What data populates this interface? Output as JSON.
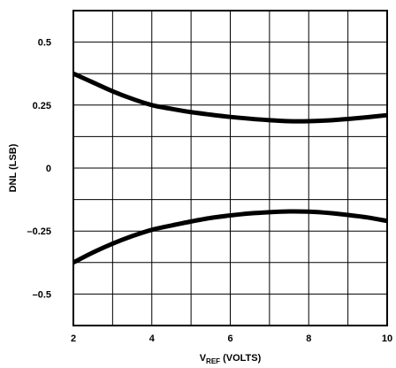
{
  "chart_data": {
    "type": "line",
    "xlabel": "V",
    "xlabel_subscript": "REF",
    "xlabel_suffix": " (VOLTS)",
    "ylabel": "DNL (LSB)",
    "xlim": [
      2,
      10
    ],
    "ylim": [
      -0.625,
      0.625
    ],
    "x_ticks": [
      2,
      4,
      6,
      8,
      10
    ],
    "x_tick_labels": [
      "2",
      "4",
      "6",
      "8",
      "10"
    ],
    "y_ticks": [
      0.5,
      0.25,
      0,
      -0.25,
      -0.5
    ],
    "y_tick_labels": [
      "0.5",
      "0.25",
      "0",
      "–0.25",
      "–0.5"
    ],
    "grid": true,
    "grid_x_step": 1,
    "grid_y_step": 0.125,
    "line_color": "#000000",
    "series": [
      {
        "x": [
          2,
          2.5,
          3,
          3.5,
          4,
          4.5,
          5,
          5.5,
          6,
          6.5,
          7,
          7.5,
          8,
          8.5,
          9,
          9.5,
          10
        ],
        "values": [
          0.375,
          0.34,
          0.305,
          0.275,
          0.25,
          0.235,
          0.222,
          0.212,
          0.203,
          0.196,
          0.19,
          0.186,
          0.186,
          0.189,
          0.195,
          0.202,
          0.21
        ]
      },
      {
        "x": [
          2,
          2.5,
          3,
          3.5,
          4,
          4.5,
          5,
          5.5,
          6,
          6.5,
          7,
          7.5,
          8,
          8.5,
          9,
          9.5,
          10
        ],
        "values": [
          -0.375,
          -0.335,
          -0.3,
          -0.27,
          -0.245,
          -0.228,
          -0.212,
          -0.198,
          -0.188,
          -0.18,
          -0.175,
          -0.172,
          -0.173,
          -0.178,
          -0.186,
          -0.196,
          -0.21
        ]
      }
    ]
  }
}
